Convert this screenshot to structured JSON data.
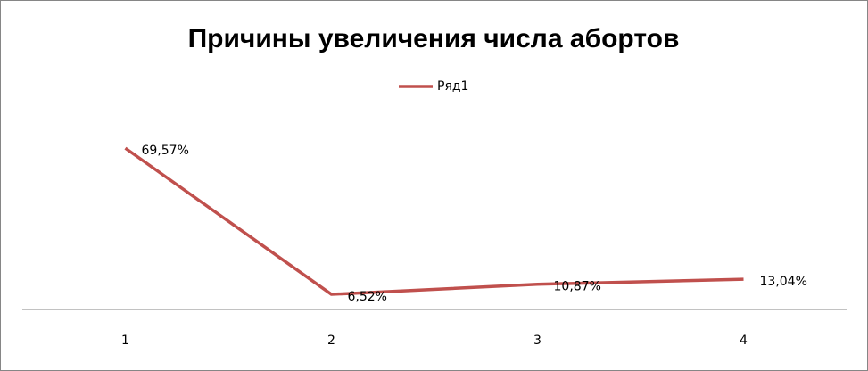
{
  "chart_data": {
    "type": "line",
    "title": "Причины увеличения числа абортов",
    "categories": [
      "1",
      "2",
      "3",
      "4"
    ],
    "series": [
      {
        "name": "Ряд1",
        "color": "#c0504d",
        "values": [
          69.57,
          6.52,
          10.87,
          13.04
        ],
        "value_labels": [
          "69,57%",
          "6,52%",
          "10,87%",
          "13,04%"
        ]
      }
    ],
    "ylim": [
      0,
      80
    ],
    "legend": "top"
  }
}
